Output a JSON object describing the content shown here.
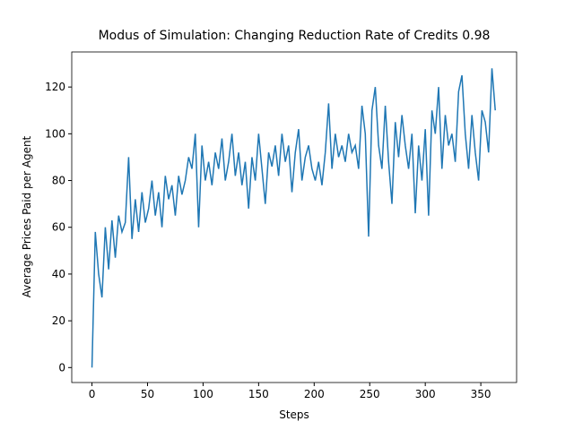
{
  "chart_data": {
    "type": "line",
    "title": "Modus of Simulation: Changing Reduction Rate of Credits 0.98",
    "x_label": "Steps",
    "y_label": "Average Prices Paid per Agent",
    "x": [
      0,
      3,
      6,
      9,
      12,
      15,
      18,
      21,
      24,
      27,
      30,
      33,
      36,
      39,
      42,
      45,
      48,
      51,
      54,
      57,
      60,
      63,
      66,
      69,
      72,
      75,
      78,
      81,
      84,
      87,
      90,
      93,
      96,
      99,
      102,
      105,
      108,
      111,
      114,
      117,
      120,
      123,
      126,
      129,
      132,
      135,
      138,
      141,
      144,
      147,
      150,
      153,
      156,
      159,
      162,
      165,
      168,
      171,
      174,
      177,
      180,
      183,
      186,
      189,
      192,
      195,
      198,
      201,
      204,
      207,
      210,
      213,
      216,
      219,
      222,
      225,
      228,
      231,
      234,
      237,
      240,
      243,
      246,
      249,
      252,
      255,
      258,
      261,
      264,
      267,
      270,
      273,
      276,
      279,
      282,
      285,
      288,
      291,
      294,
      297,
      300,
      303,
      306,
      309,
      312,
      315,
      318,
      321,
      324,
      327,
      330,
      333,
      336,
      339,
      342,
      345,
      348,
      351,
      354,
      357,
      360,
      363
    ],
    "series": [
      {
        "color": "#1f77b4",
        "values": [
          0,
          58,
          40,
          30,
          60,
          42,
          63,
          47,
          65,
          58,
          62,
          90,
          55,
          72,
          58,
          75,
          62,
          68,
          80,
          65,
          75,
          60,
          82,
          72,
          78,
          65,
          82,
          74,
          80,
          90,
          85,
          100,
          60,
          95,
          80,
          88,
          78,
          92,
          85,
          98,
          80,
          88,
          100,
          82,
          92,
          78,
          88,
          68,
          90,
          80,
          100,
          85,
          70,
          92,
          86,
          95,
          82,
          100,
          88,
          95,
          75,
          92,
          102,
          80,
          90,
          95,
          85,
          80,
          88,
          78,
          92,
          113,
          85,
          100,
          90,
          95,
          88,
          100,
          92,
          95,
          85,
          112,
          100,
          56,
          110,
          120,
          95,
          85,
          112,
          88,
          70,
          105,
          90,
          108,
          95,
          85,
          100,
          66,
          95,
          80,
          102,
          65,
          110,
          100,
          120,
          85,
          108,
          95,
          100,
          88,
          118,
          125,
          100,
          85,
          108,
          92,
          80,
          110,
          105,
          92,
          128,
          110
        ]
      }
    ],
    "xlim": [
      -18.2,
      382.2
    ],
    "ylim": [
      -6.4,
      135
    ],
    "xticks": [
      0,
      50,
      100,
      150,
      200,
      250,
      300,
      350
    ],
    "yticks": [
      0,
      20,
      40,
      60,
      80,
      100,
      120
    ]
  }
}
